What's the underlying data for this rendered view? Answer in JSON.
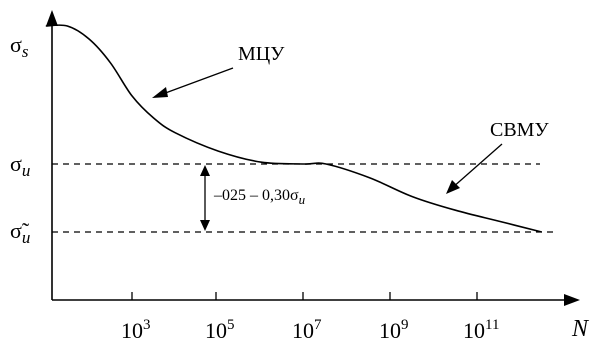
{
  "chart_data": {
    "type": "line",
    "xlabel": "N",
    "ylabel_top": "σ",
    "ylabel_top_sub": "s",
    "x_ticks": [
      {
        "base": "10",
        "exp": "3"
      },
      {
        "base": "10",
        "exp": "5"
      },
      {
        "base": "10",
        "exp": "7"
      },
      {
        "base": "10",
        "exp": "9"
      },
      {
        "base": "10",
        "exp": "11"
      }
    ],
    "x_scale": "log",
    "x_tick_exponents": [
      3,
      5,
      7,
      9,
      11
    ],
    "levels": [
      {
        "symbol": "σ",
        "sub": "u",
        "dashed": true
      },
      {
        "symbol": "σ̃",
        "sub": "u",
        "dashed": true
      }
    ],
    "regions": [
      {
        "label": "МЦУ"
      },
      {
        "label": "СВМУ"
      }
    ],
    "gap_annotation": {
      "text": "–025 – 0,30σ",
      "sub": "u"
    },
    "series": [
      {
        "points": [
          [
            1,
            1.0
          ],
          [
            1.5,
            1.0
          ],
          [
            2,
            0.93
          ],
          [
            2.5,
            0.8
          ],
          [
            3,
            0.62
          ],
          [
            3.5,
            0.5
          ],
          [
            4,
            0.42
          ],
          [
            5,
            0.32
          ],
          [
            6,
            0.26
          ],
          [
            7,
            0.25
          ],
          [
            7.5,
            0.25
          ],
          [
            8.5,
            0.2
          ],
          [
            9.5,
            0.13
          ],
          [
            10.5,
            0.08
          ],
          [
            11.5,
            0.04
          ],
          [
            12.5,
            0.0
          ]
        ]
      }
    ]
  }
}
